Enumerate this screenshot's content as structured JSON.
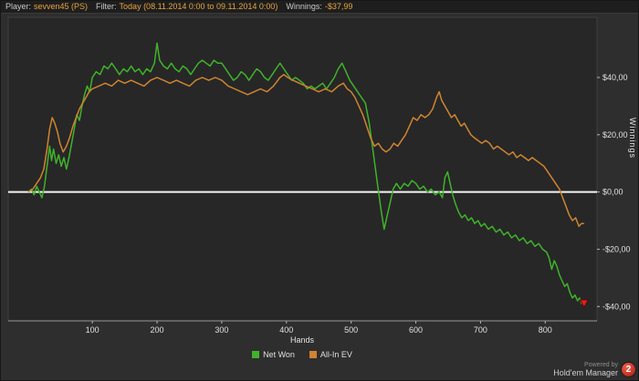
{
  "header": {
    "player_label": "Player:",
    "player_value": "sevven45 (PS)",
    "filter_label": "Filter:",
    "filter_value": "Today (08.11.2014 0:00 to 09.11.2014 0:00)",
    "winnings_label": "Winnings:",
    "winnings_value": "-$37,99"
  },
  "chart_data": {
    "type": "line",
    "title": "",
    "xlabel": "Hands",
    "ylabel": "Winnings",
    "xlim": [
      -30,
      880
    ],
    "ylim": [
      -45,
      61
    ],
    "x_ticks": [
      100,
      200,
      300,
      400,
      500,
      600,
      700,
      800
    ],
    "y_ticks": [
      {
        "value": 40,
        "label": "$40,00"
      },
      {
        "value": 20,
        "label": "$20,00"
      },
      {
        "value": 0,
        "label": "$0,00"
      },
      {
        "value": -20,
        "label": "-$20,00"
      },
      {
        "value": -40,
        "label": "-$40,00"
      }
    ],
    "grid": false,
    "zero_line_color": "#f5f5f5",
    "legend_position": "bottom",
    "series": [
      {
        "name": "Net Won",
        "color": "#3fb32a",
        "points": [
          [
            1,
            0
          ],
          [
            6,
            1
          ],
          [
            10,
            -1
          ],
          [
            14,
            2
          ],
          [
            18,
            0
          ],
          [
            22,
            -2
          ],
          [
            26,
            2
          ],
          [
            30,
            9
          ],
          [
            34,
            16
          ],
          [
            37,
            11
          ],
          [
            40,
            15
          ],
          [
            44,
            10
          ],
          [
            48,
            13
          ],
          [
            52,
            9
          ],
          [
            56,
            12
          ],
          [
            60,
            8
          ],
          [
            64,
            12
          ],
          [
            68,
            17
          ],
          [
            72,
            22
          ],
          [
            76,
            27
          ],
          [
            80,
            25
          ],
          [
            84,
            30
          ],
          [
            88,
            34
          ],
          [
            92,
            37
          ],
          [
            96,
            35
          ],
          [
            100,
            40
          ],
          [
            106,
            42
          ],
          [
            112,
            41
          ],
          [
            118,
            44
          ],
          [
            124,
            43
          ],
          [
            130,
            45
          ],
          [
            136,
            43
          ],
          [
            142,
            41
          ],
          [
            148,
            43
          ],
          [
            154,
            42
          ],
          [
            160,
            44
          ],
          [
            166,
            42
          ],
          [
            172,
            43
          ],
          [
            178,
            41
          ],
          [
            184,
            43
          ],
          [
            190,
            42
          ],
          [
            196,
            45
          ],
          [
            200,
            52
          ],
          [
            204,
            46
          ],
          [
            210,
            44
          ],
          [
            216,
            43
          ],
          [
            222,
            45
          ],
          [
            228,
            43
          ],
          [
            234,
            42
          ],
          [
            240,
            44
          ],
          [
            246,
            43
          ],
          [
            252,
            41
          ],
          [
            258,
            43
          ],
          [
            264,
            45
          ],
          [
            270,
            46
          ],
          [
            276,
            45
          ],
          [
            282,
            44
          ],
          [
            288,
            46
          ],
          [
            294,
            45
          ],
          [
            300,
            45
          ],
          [
            306,
            43
          ],
          [
            312,
            41
          ],
          [
            318,
            39
          ],
          [
            324,
            40
          ],
          [
            330,
            42
          ],
          [
            336,
            41
          ],
          [
            342,
            39
          ],
          [
            348,
            41
          ],
          [
            354,
            43
          ],
          [
            360,
            42
          ],
          [
            366,
            40
          ],
          [
            372,
            39
          ],
          [
            378,
            41
          ],
          [
            384,
            43
          ],
          [
            390,
            45
          ],
          [
            396,
            43
          ],
          [
            402,
            41
          ],
          [
            408,
            39
          ],
          [
            414,
            40
          ],
          [
            420,
            39
          ],
          [
            426,
            38
          ],
          [
            432,
            36
          ],
          [
            438,
            37
          ],
          [
            444,
            36
          ],
          [
            450,
            37
          ],
          [
            456,
            38
          ],
          [
            462,
            36
          ],
          [
            468,
            38
          ],
          [
            474,
            40
          ],
          [
            480,
            43
          ],
          [
            486,
            45
          ],
          [
            492,
            42
          ],
          [
            498,
            39
          ],
          [
            504,
            37
          ],
          [
            510,
            35
          ],
          [
            516,
            33
          ],
          [
            522,
            31
          ],
          [
            528,
            24
          ],
          [
            534,
            14
          ],
          [
            540,
            4
          ],
          [
            546,
            -6
          ],
          [
            551,
            -13
          ],
          [
            555,
            -9
          ],
          [
            560,
            -4
          ],
          [
            565,
            1
          ],
          [
            570,
            3
          ],
          [
            576,
            1
          ],
          [
            582,
            3
          ],
          [
            588,
            2
          ],
          [
            594,
            4
          ],
          [
            600,
            3
          ],
          [
            606,
            1
          ],
          [
            612,
            2
          ],
          [
            618,
            0
          ],
          [
            624,
            1
          ],
          [
            630,
            -1
          ],
          [
            636,
            0
          ],
          [
            641,
            -2
          ],
          [
            645,
            5
          ],
          [
            649,
            7
          ],
          [
            653,
            3
          ],
          [
            657,
            -1
          ],
          [
            661,
            -4
          ],
          [
            666,
            -7
          ],
          [
            671,
            -9
          ],
          [
            676,
            -8
          ],
          [
            681,
            -10
          ],
          [
            686,
            -9
          ],
          [
            691,
            -11
          ],
          [
            696,
            -10
          ],
          [
            701,
            -12
          ],
          [
            706,
            -11
          ],
          [
            712,
            -13
          ],
          [
            718,
            -12
          ],
          [
            724,
            -14
          ],
          [
            730,
            -13
          ],
          [
            736,
            -15
          ],
          [
            742,
            -14
          ],
          [
            748,
            -16
          ],
          [
            754,
            -15
          ],
          [
            760,
            -17
          ],
          [
            766,
            -16
          ],
          [
            772,
            -18
          ],
          [
            778,
            -17
          ],
          [
            784,
            -19
          ],
          [
            790,
            -18
          ],
          [
            796,
            -20
          ],
          [
            802,
            -21
          ],
          [
            806,
            -23
          ],
          [
            810,
            -27
          ],
          [
            814,
            -24
          ],
          [
            818,
            -26
          ],
          [
            822,
            -29
          ],
          [
            826,
            -31
          ],
          [
            830,
            -33
          ],
          [
            834,
            -32
          ],
          [
            838,
            -35
          ],
          [
            842,
            -37
          ],
          [
            846,
            -36
          ],
          [
            850,
            -38
          ],
          [
            853,
            -37
          ],
          [
            856,
            -39
          ],
          [
            860,
            -38
          ]
        ]
      },
      {
        "name": "All-In EV",
        "color": "#d08431",
        "points": [
          [
            1,
            0
          ],
          [
            8,
            1
          ],
          [
            14,
            3
          ],
          [
            20,
            5
          ],
          [
            25,
            8
          ],
          [
            30,
            15
          ],
          [
            34,
            22
          ],
          [
            38,
            26
          ],
          [
            42,
            24
          ],
          [
            46,
            21
          ],
          [
            50,
            17
          ],
          [
            55,
            14
          ],
          [
            60,
            16
          ],
          [
            65,
            19
          ],
          [
            70,
            23
          ],
          [
            75,
            26
          ],
          [
            80,
            29
          ],
          [
            85,
            31
          ],
          [
            90,
            33
          ],
          [
            95,
            35
          ],
          [
            100,
            36
          ],
          [
            110,
            37
          ],
          [
            120,
            38
          ],
          [
            130,
            37
          ],
          [
            140,
            39
          ],
          [
            150,
            38
          ],
          [
            160,
            39
          ],
          [
            170,
            38
          ],
          [
            180,
            37
          ],
          [
            190,
            39
          ],
          [
            200,
            40
          ],
          [
            210,
            39
          ],
          [
            220,
            38
          ],
          [
            230,
            39
          ],
          [
            240,
            38
          ],
          [
            250,
            37
          ],
          [
            260,
            39
          ],
          [
            270,
            40
          ],
          [
            280,
            39
          ],
          [
            290,
            40
          ],
          [
            300,
            39
          ],
          [
            310,
            37
          ],
          [
            320,
            36
          ],
          [
            330,
            35
          ],
          [
            340,
            34
          ],
          [
            350,
            35
          ],
          [
            360,
            36
          ],
          [
            370,
            35
          ],
          [
            380,
            37
          ],
          [
            390,
            40
          ],
          [
            396,
            41
          ],
          [
            402,
            40
          ],
          [
            410,
            39
          ],
          [
            420,
            38
          ],
          [
            430,
            37
          ],
          [
            440,
            36
          ],
          [
            450,
            35
          ],
          [
            460,
            36
          ],
          [
            470,
            35
          ],
          [
            480,
            37
          ],
          [
            488,
            38
          ],
          [
            494,
            36
          ],
          [
            500,
            35
          ],
          [
            506,
            33
          ],
          [
            512,
            30
          ],
          [
            518,
            27
          ],
          [
            524,
            23
          ],
          [
            530,
            19
          ],
          [
            536,
            16
          ],
          [
            542,
            17
          ],
          [
            548,
            15
          ],
          [
            554,
            14
          ],
          [
            560,
            15
          ],
          [
            566,
            17
          ],
          [
            572,
            16
          ],
          [
            578,
            18
          ],
          [
            584,
            20
          ],
          [
            590,
            23
          ],
          [
            596,
            26
          ],
          [
            602,
            25
          ],
          [
            608,
            27
          ],
          [
            614,
            26
          ],
          [
            620,
            27
          ],
          [
            626,
            29
          ],
          [
            632,
            33
          ],
          [
            636,
            35
          ],
          [
            640,
            32
          ],
          [
            645,
            30
          ],
          [
            650,
            28
          ],
          [
            655,
            26
          ],
          [
            660,
            27
          ],
          [
            665,
            25
          ],
          [
            670,
            23
          ],
          [
            675,
            24
          ],
          [
            680,
            22
          ],
          [
            685,
            20
          ],
          [
            690,
            19
          ],
          [
            696,
            18
          ],
          [
            702,
            17
          ],
          [
            708,
            18
          ],
          [
            714,
            17
          ],
          [
            720,
            15
          ],
          [
            726,
            16
          ],
          [
            732,
            15
          ],
          [
            738,
            14
          ],
          [
            744,
            13
          ],
          [
            750,
            14
          ],
          [
            756,
            12
          ],
          [
            762,
            13
          ],
          [
            768,
            12
          ],
          [
            774,
            11
          ],
          [
            780,
            12
          ],
          [
            786,
            11
          ],
          [
            792,
            10
          ],
          [
            798,
            9
          ],
          [
            804,
            7
          ],
          [
            810,
            5
          ],
          [
            816,
            3
          ],
          [
            822,
            1
          ],
          [
            827,
            -2
          ],
          [
            832,
            -5
          ],
          [
            837,
            -8
          ],
          [
            842,
            -10
          ],
          [
            847,
            -9
          ],
          [
            852,
            -12
          ],
          [
            856,
            -11
          ],
          [
            860,
            -11
          ]
        ]
      }
    ],
    "end_marker": {
      "series": "Net Won",
      "shape": "triangle-down",
      "color": "#e02020",
      "stroke": "#5a0b0b"
    }
  },
  "legend": {
    "items": [
      {
        "label": "Net Won",
        "color": "#3fb32a"
      },
      {
        "label": "All-In EV",
        "color": "#d08431"
      }
    ]
  },
  "footer": {
    "powered_by": "Powered by",
    "brand": "Hold'em Manager",
    "logo_text": "2"
  },
  "colors": {
    "background": "#2e2e2e",
    "topbar_background": "#1e1e1e",
    "plot_background": "#272727",
    "accent_orange": "#e8a33d",
    "axis_text": "#e0e0e0",
    "zero_line": "#f5f5f5",
    "net_won_green": "#3fb32a",
    "all_in_ev_orange": "#d08431",
    "marker_red": "#e02020",
    "logo_red": "#c0392b"
  }
}
